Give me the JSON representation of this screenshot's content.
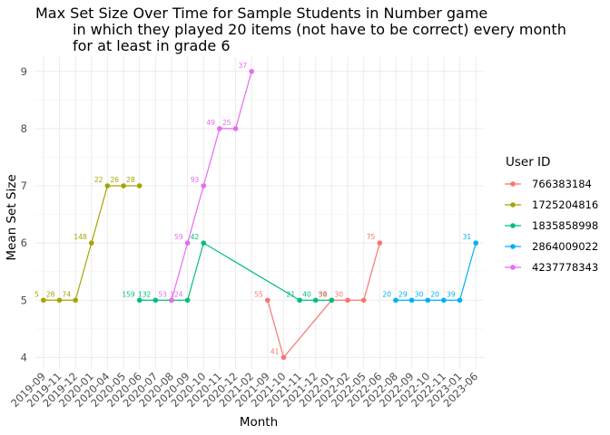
{
  "chart_data": {
    "type": "line",
    "title_lines": [
      "Max Set Size Over Time for Sample Students in Number game",
      "in which they played 20 items (not have to be correct) every month",
      "for at least in grade 6"
    ],
    "xlabel": "Month",
    "ylabel": "Mean Set Size",
    "ylim": [
      3.8,
      9.25
    ],
    "y_ticks": [
      4,
      5,
      6,
      7,
      8,
      9
    ],
    "grid": true,
    "legend_position": "right",
    "legend_title": "User ID",
    "categories": [
      "2019-09",
      "2019-11",
      "2019-12",
      "2020-01",
      "2020-04",
      "2020-05",
      "2020-06",
      "2020-07",
      "2020-08",
      "2020-09",
      "2020-10",
      "2020-11",
      "2020-12",
      "2021-02",
      "2021-09",
      "2021-10",
      "2021-11",
      "2021-12",
      "2022-01",
      "2022-02",
      "2022-05",
      "2022-06",
      "2022-08",
      "2022-09",
      "2022-10",
      "2022-11",
      "2023-01",
      "2023-06"
    ],
    "series": [
      {
        "name": "766383184",
        "color": "#F8766D",
        "points": [
          {
            "x": "2021-09",
            "y": 5,
            "label": "55"
          },
          {
            "x": "2021-10",
            "y": 4,
            "label": "41"
          },
          {
            "x": "2022-01",
            "y": 5,
            "label": "54"
          },
          {
            "x": "2022-02",
            "y": 5,
            "label": "30"
          },
          {
            "x": "2022-05",
            "y": 5,
            "label": ""
          },
          {
            "x": "2022-06",
            "y": 6,
            "label": "75"
          }
        ]
      },
      {
        "name": "1725204816",
        "color": "#A3A500",
        "points": [
          {
            "x": "2019-09",
            "y": 5,
            "label": "5"
          },
          {
            "x": "2019-11",
            "y": 5,
            "label": "28"
          },
          {
            "x": "2019-12",
            "y": 5,
            "label": "74"
          },
          {
            "x": "2020-01",
            "y": 6,
            "label": "148"
          },
          {
            "x": "2020-04",
            "y": 7,
            "label": "22"
          },
          {
            "x": "2020-05",
            "y": 7,
            "label": "26"
          },
          {
            "x": "2020-06",
            "y": 7,
            "label": "28"
          }
        ]
      },
      {
        "name": "1835858998",
        "color": "#00BF7D",
        "points": [
          {
            "x": "2020-06",
            "y": 5,
            "label": "159"
          },
          {
            "x": "2020-07",
            "y": 5,
            "label": "132"
          },
          {
            "x": "2020-08",
            "y": 5,
            "label": ""
          },
          {
            "x": "2020-09",
            "y": 5,
            "label": ""
          },
          {
            "x": "2020-10",
            "y": 6,
            "label": "42"
          },
          {
            "x": "2021-11",
            "y": 5,
            "label": "21"
          },
          {
            "x": "2021-12",
            "y": 5,
            "label": "40"
          },
          {
            "x": "2022-01",
            "y": 5,
            "label": "30"
          }
        ]
      },
      {
        "name": "2864009022",
        "color": "#00B0F6",
        "points": [
          {
            "x": "2022-08",
            "y": 5,
            "label": "20"
          },
          {
            "x": "2022-09",
            "y": 5,
            "label": "29"
          },
          {
            "x": "2022-10",
            "y": 5,
            "label": "30"
          },
          {
            "x": "2022-11",
            "y": 5,
            "label": "20"
          },
          {
            "x": "2023-01",
            "y": 5,
            "label": "39"
          },
          {
            "x": "2023-06",
            "y": 6,
            "label": "31"
          }
        ]
      },
      {
        "name": "4237778343",
        "color": "#E76BF3",
        "points": [
          {
            "x": "2020-08",
            "y": 5,
            "label": "53"
          },
          {
            "x": "2020-09",
            "y": 6,
            "label": "59"
          },
          {
            "x": "2020-10",
            "y": 7,
            "label": "93"
          },
          {
            "x": "2020-11",
            "y": 8,
            "label": "49"
          },
          {
            "x": "2020-12",
            "y": 8,
            "label": "25"
          },
          {
            "x": "2021-02",
            "y": 9,
            "label": "37"
          }
        ]
      }
    ],
    "extra_labels": [
      {
        "x": "2020-09",
        "y": 5,
        "label": "124",
        "color": "#E76BF3"
      },
      {
        "x": "2022-01",
        "y": 5,
        "label": "30",
        "color": "#F8766D"
      }
    ]
  }
}
